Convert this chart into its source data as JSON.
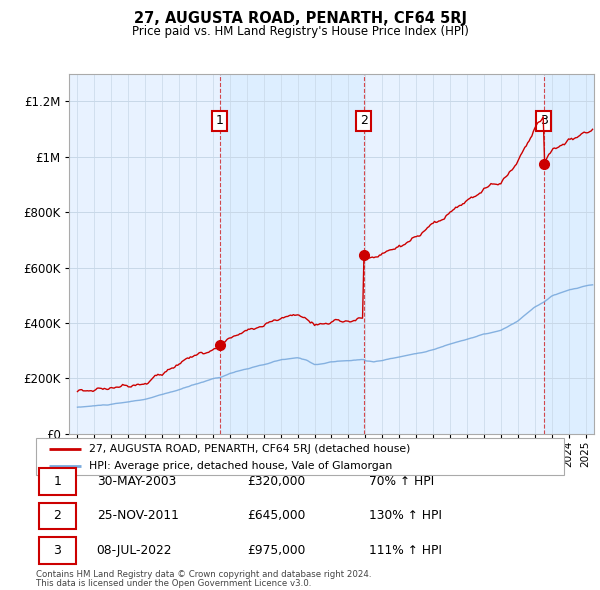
{
  "title": "27, AUGUSTA ROAD, PENARTH, CF64 5RJ",
  "subtitle": "Price paid vs. HM Land Registry's House Price Index (HPI)",
  "legend_line1": "27, AUGUSTA ROAD, PENARTH, CF64 5RJ (detached house)",
  "legend_line2": "HPI: Average price, detached house, Vale of Glamorgan",
  "footnote1": "Contains HM Land Registry data © Crown copyright and database right 2024.",
  "footnote2": "This data is licensed under the Open Government Licence v3.0.",
  "table": [
    {
      "num": 1,
      "date": "30-MAY-2003",
      "price": "£320,000",
      "hpi": "70% ↑ HPI"
    },
    {
      "num": 2,
      "date": "25-NOV-2011",
      "price": "£645,000",
      "hpi": "130% ↑ HPI"
    },
    {
      "num": 3,
      "date": "08-JUL-2022",
      "price": "£975,000",
      "hpi": "111% ↑ HPI"
    }
  ],
  "sale_dates_num": [
    2003.41,
    2011.9,
    2022.52
  ],
  "sale_prices": [
    320000,
    645000,
    975000
  ],
  "red_line_color": "#cc0000",
  "blue_line_color": "#7aaadd",
  "bg_color": "#ddeeff",
  "bg_light_color": "#e8f2ff",
  "grid_color": "#c8d8e8",
  "ylim": [
    0,
    1300000
  ],
  "yticks": [
    0,
    200000,
    400000,
    600000,
    800000,
    1000000,
    1200000
  ],
  "xlim_start": 1994.5,
  "xlim_end": 2025.5
}
